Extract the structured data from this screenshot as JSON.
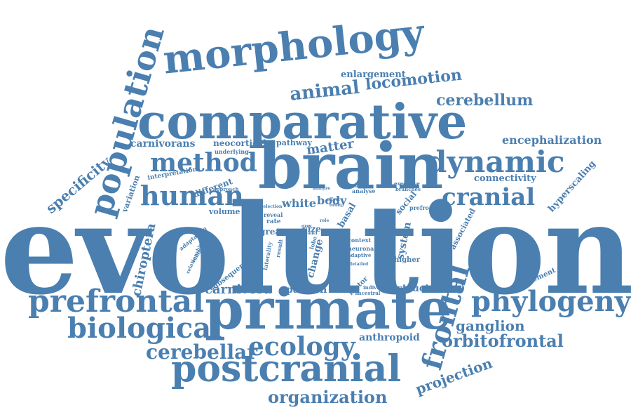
{
  "color": "#4a7fb0",
  "words": [
    "evolution",
    "brain",
    "comparative",
    "morphology",
    "population",
    "primate",
    "postcranial",
    "prefrontal",
    "biological",
    "phylogeny",
    "dynamic",
    "method",
    "human",
    "cranial",
    "frontal",
    "ecology",
    "cerebellar",
    "organization",
    "animal",
    "locomotion",
    "cerebellum",
    "specificity",
    "orbitofrontal",
    "ganglion",
    "chiroptera",
    "projection",
    "carnivora",
    "carnivorans",
    "neocortical",
    "matter",
    "encephalization",
    "enlargement",
    "connectivity",
    "different",
    "interpretation",
    "anthropoid",
    "structural",
    "hyperscaling",
    "white",
    "body",
    "associated",
    "pattern",
    "system",
    "measurement",
    "social",
    "variation",
    "change",
    "basal",
    "volume",
    "subsequent",
    "pathway",
    "underlying",
    "approach",
    "context",
    "neuronal",
    "adaptive",
    "higher",
    "great",
    "size",
    "lobe",
    "result",
    "rate",
    "reveal",
    "laterality",
    "volumetric",
    "relationship",
    "adaptation",
    "selection",
    "prefronto",
    "executive",
    "branches",
    "analyse",
    "analyze",
    "motor",
    "individual",
    "ancestral",
    "detailed",
    "grey",
    "order",
    "lineage",
    "effect",
    "role",
    "model"
  ]
}
